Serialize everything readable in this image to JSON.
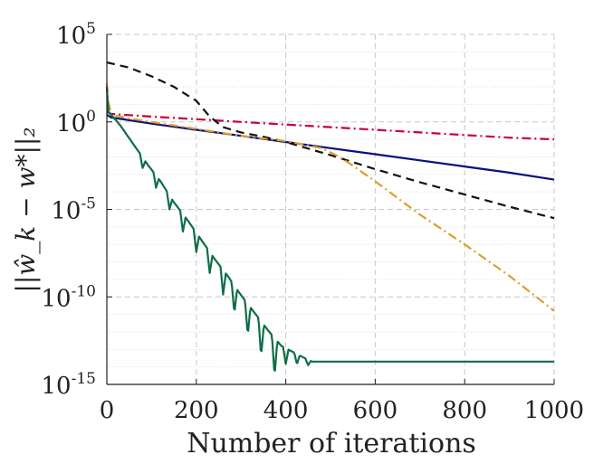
{
  "chart_data": {
    "type": "line",
    "xlabel": "Number of iterations",
    "ylabel": "||ŵ_k − w*||₂",
    "xlim": [
      0,
      1000
    ],
    "ylim_log10": [
      -15,
      5
    ],
    "y_scale": "log",
    "grid": true,
    "x_ticks": [
      {
        "value": 0,
        "label": "0"
      },
      {
        "value": 200,
        "label": "200"
      },
      {
        "value": 400,
        "label": "400"
      },
      {
        "value": 600,
        "label": "600"
      },
      {
        "value": 800,
        "label": "800"
      },
      {
        "value": 1000,
        "label": "1000"
      }
    ],
    "y_ticks": [
      {
        "value": 5,
        "base": "10",
        "exp": "5"
      },
      {
        "value": 0,
        "base": "10",
        "exp": "0"
      },
      {
        "value": -5,
        "base": "10",
        "exp": "-5"
      },
      {
        "value": -10,
        "base": "10",
        "exp": "-10"
      },
      {
        "value": -15,
        "base": "10",
        "exp": "-15"
      }
    ],
    "series": [
      {
        "color": "#c8003c",
        "dash": "dashdot",
        "x": [
          0,
          5,
          10,
          100,
          200,
          300,
          400,
          500,
          600,
          700,
          800,
          900,
          1000
        ],
        "log10_y": [
          0.6,
          0.5,
          0.45,
          0.3,
          0.15,
          0.0,
          -0.15,
          -0.3,
          -0.45,
          -0.6,
          -0.75,
          -0.9,
          -1.0
        ]
      },
      {
        "color": "#0a0f7a",
        "dash": "solid",
        "x": [
          0,
          10,
          100,
          200,
          300,
          400,
          500,
          600,
          700,
          800,
          900,
          1000
        ],
        "log10_y": [
          0.4,
          0.25,
          -0.1,
          -0.45,
          -0.8,
          -1.15,
          -1.5,
          -1.85,
          -2.2,
          -2.55,
          -2.9,
          -3.3
        ]
      },
      {
        "color": "#111111",
        "dash": "dashed",
        "x": [
          0,
          50,
          100,
          150,
          200,
          230,
          260,
          300,
          350,
          400,
          500,
          600,
          700,
          800,
          900,
          1000
        ],
        "log10_y": [
          3.4,
          3.1,
          2.6,
          2.0,
          1.2,
          0.3,
          -0.3,
          -0.6,
          -0.85,
          -1.15,
          -1.9,
          -2.7,
          -3.45,
          -4.15,
          -4.85,
          -5.5
        ]
      },
      {
        "color": "#dd9e2a",
        "dash": "dashdot",
        "x": [
          0,
          3,
          10,
          50,
          100,
          200,
          300,
          400,
          480,
          520,
          550,
          600,
          700,
          800,
          900,
          1000
        ],
        "log10_y": [
          2.2,
          1.2,
          0.4,
          0.2,
          0.0,
          -0.4,
          -0.8,
          -1.1,
          -1.5,
          -2.0,
          -2.5,
          -3.4,
          -5.3,
          -7.0,
          -8.8,
          -10.8
        ]
      },
      {
        "color": "#0e6e47",
        "dash": "solid",
        "x": [
          0,
          3,
          10,
          30,
          60,
          90,
          120,
          150,
          180,
          210,
          240,
          270,
          300,
          330,
          360,
          390,
          420,
          450,
          460,
          480,
          500,
          600,
          700,
          800,
          900,
          1000
        ],
        "log10_y": [
          2.0,
          0.6,
          0.4,
          -0.2,
          -1.3,
          -2.4,
          -3.4,
          -4.6,
          -5.6,
          -6.7,
          -7.8,
          -8.8,
          -9.9,
          -10.9,
          -11.9,
          -12.8,
          -13.2,
          -13.6,
          -13.7,
          -13.7,
          -13.7,
          -13.7,
          -13.7,
          -13.7,
          -13.7,
          -13.7
        ]
      }
    ],
    "dips": [
      {
        "series": 4,
        "x": [
          80,
          110,
          140,
          170,
          200,
          230,
          260,
          285,
          315,
          345,
          375,
          400,
          425,
          450
        ],
        "depth": [
          0.6,
          0.7,
          0.8,
          1.0,
          1.1,
          1.2,
          1.4,
          1.6,
          1.8,
          2.0,
          2.2,
          0.9,
          0.6,
          0.3
        ]
      }
    ]
  }
}
